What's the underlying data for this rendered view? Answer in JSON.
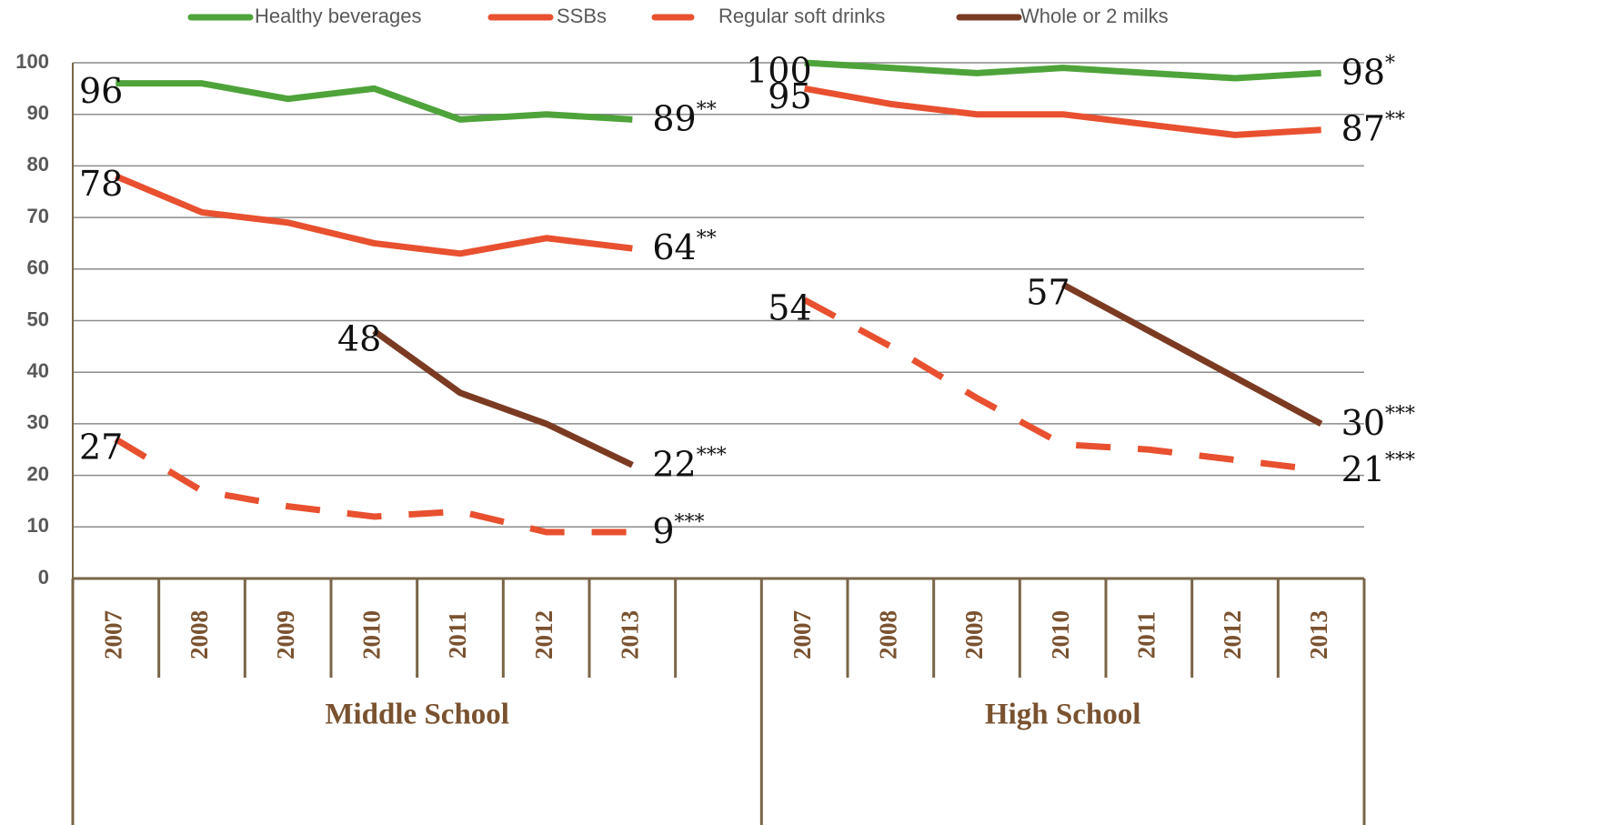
{
  "chart_data": {
    "type": "line",
    "categories": [
      "2007",
      "2008",
      "2009",
      "2010",
      "2011",
      "2012",
      "2013",
      null,
      "2007",
      "2008",
      "2009",
      "2010",
      "2011",
      "2012",
      "2013"
    ],
    "groups": [
      "Middle School",
      "High School"
    ],
    "ylim": [
      0,
      100
    ],
    "yticks": [
      0,
      10,
      20,
      30,
      40,
      50,
      60,
      70,
      80,
      90,
      100
    ],
    "grid": true,
    "legend": "top",
    "series": [
      {
        "name": "Healthy beverages",
        "color": "#4ea33a",
        "dash": false,
        "values": [
          96,
          96,
          93,
          95,
          89,
          90,
          89,
          null,
          100,
          99,
          98,
          99,
          98,
          97,
          98
        ],
        "value_labels": [
          "96",
          null,
          null,
          null,
          null,
          null,
          "89**",
          null,
          "100",
          null,
          null,
          null,
          null,
          null,
          "98*"
        ]
      },
      {
        "name": "SSBs",
        "color": "#e8502f",
        "dash": false,
        "values": [
          78,
          71,
          69,
          65,
          63,
          66,
          64,
          null,
          95,
          92,
          90,
          90,
          88,
          86,
          87
        ],
        "value_labels": [
          "78",
          null,
          null,
          null,
          null,
          null,
          "64**",
          null,
          "95",
          null,
          null,
          null,
          null,
          null,
          "87**"
        ]
      },
      {
        "name": "Regular soft drinks",
        "color": "#e8502f",
        "dash": true,
        "values": [
          27,
          17,
          14,
          12,
          13,
          9,
          9,
          null,
          54,
          45,
          35,
          26,
          25,
          23,
          21
        ],
        "value_labels": [
          "27",
          null,
          null,
          null,
          null,
          null,
          "9***",
          null,
          "54",
          null,
          null,
          null,
          null,
          null,
          "21***"
        ]
      },
      {
        "name": "Whole or 2 milks",
        "color": "#7b3b22",
        "dash": false,
        "values": [
          null,
          null,
          null,
          48,
          36,
          30,
          22,
          null,
          null,
          null,
          null,
          57,
          48,
          39,
          30
        ],
        "value_labels": [
          null,
          null,
          null,
          "48",
          null,
          null,
          "22***",
          null,
          null,
          null,
          null,
          "57",
          null,
          null,
          "30***"
        ]
      }
    ]
  }
}
